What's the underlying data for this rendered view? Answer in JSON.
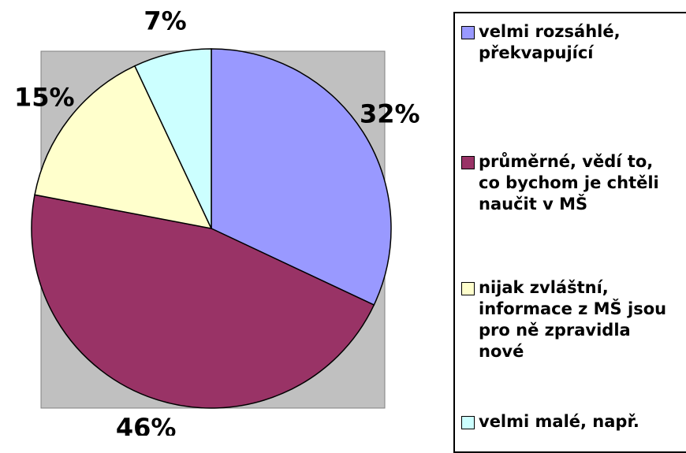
{
  "chart_data": {
    "type": "pie",
    "categories": [
      "velmi rozsáhlé, překvapující",
      "průměrné, vědí to, co bychom je chtěli naučit v MŠ",
      "nijak zvláštní, informace z MŠ jsou pro ně zpravidla nové",
      "velmi malé, např."
    ],
    "values": [
      32,
      46,
      15,
      7
    ],
    "value_labels": [
      "32%",
      "46%",
      "15%",
      "7%"
    ],
    "colors": [
      "#9999ff",
      "#993366",
      "#ffffcc",
      "#ccffff"
    ],
    "legend": "right"
  }
}
